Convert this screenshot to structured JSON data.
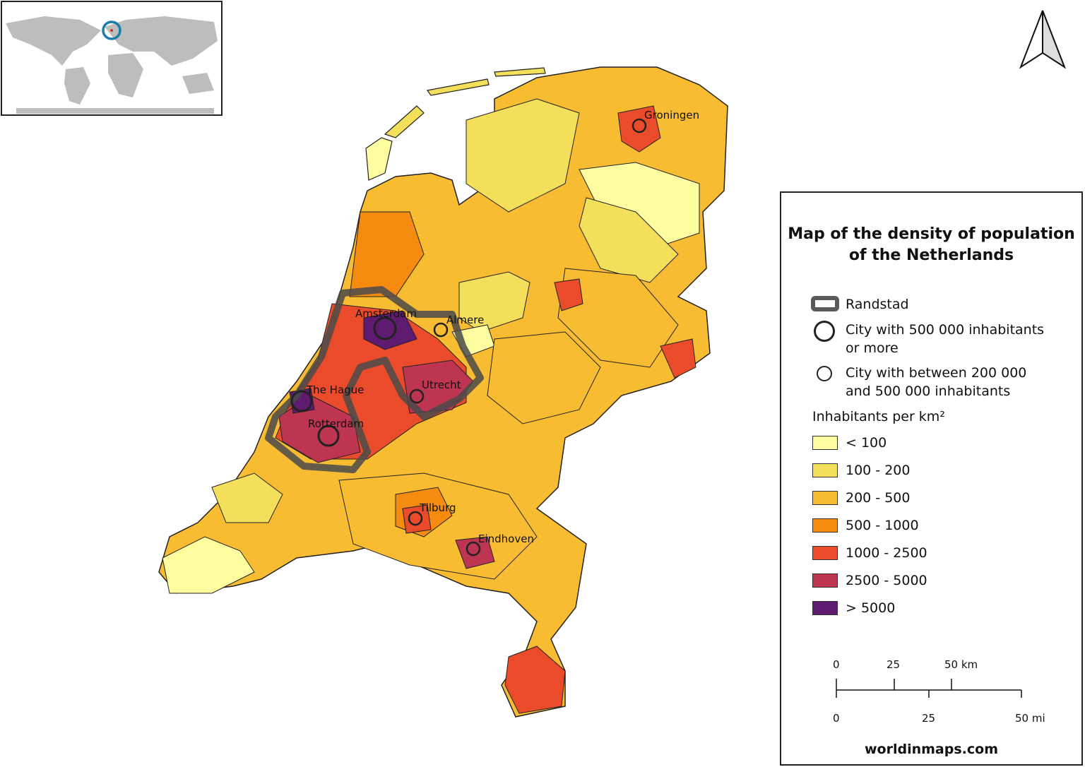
{
  "legend": {
    "title_line1": "Map of the density of population",
    "title_line2": "of the Netherlands",
    "randstad_label": "Randstad",
    "city_large_line1": "City with 500 000 inhabitants",
    "city_large_line2": "or more",
    "city_medium_line1": "City with between 200 000",
    "city_medium_line2": "and 500 000 inhabitants",
    "density_heading": "Inhabitants per km²",
    "classes": [
      {
        "label": "< 100",
        "color": "#fdfd9f"
      },
      {
        "label": "100 - 200",
        "color": "#f3df5a"
      },
      {
        "label": "200 - 500",
        "color": "#f8bc33"
      },
      {
        "label": "500 - 1000",
        "color": "#f58b0f"
      },
      {
        "label": "1000 - 2500",
        "color": "#ea4b2a"
      },
      {
        "label": "2500 - 5000",
        "color": "#bd3550"
      },
      {
        "label": "> 5000",
        "color": "#5f1b70"
      }
    ]
  },
  "scale_bar": {
    "km_labels": [
      "0",
      "25",
      "50 km"
    ],
    "mi_labels": [
      "0",
      "25",
      "50 mi"
    ]
  },
  "cities": [
    {
      "name": "Groningen",
      "size": "medium"
    },
    {
      "name": "Amsterdam",
      "size": "large"
    },
    {
      "name": "Almere",
      "size": "medium"
    },
    {
      "name": "The Hague",
      "size": "large"
    },
    {
      "name": "Utrecht",
      "size": "medium"
    },
    {
      "name": "Rotterdam",
      "size": "large"
    },
    {
      "name": "Tilburg",
      "size": "medium"
    },
    {
      "name": "Eindhoven",
      "size": "medium"
    }
  ],
  "footer": "worldinmaps.com",
  "colors": {
    "randstad_outline": "#4a4a4a",
    "inset_highlight": "#1a7fa8",
    "inset_land": "#bdbdbd"
  }
}
